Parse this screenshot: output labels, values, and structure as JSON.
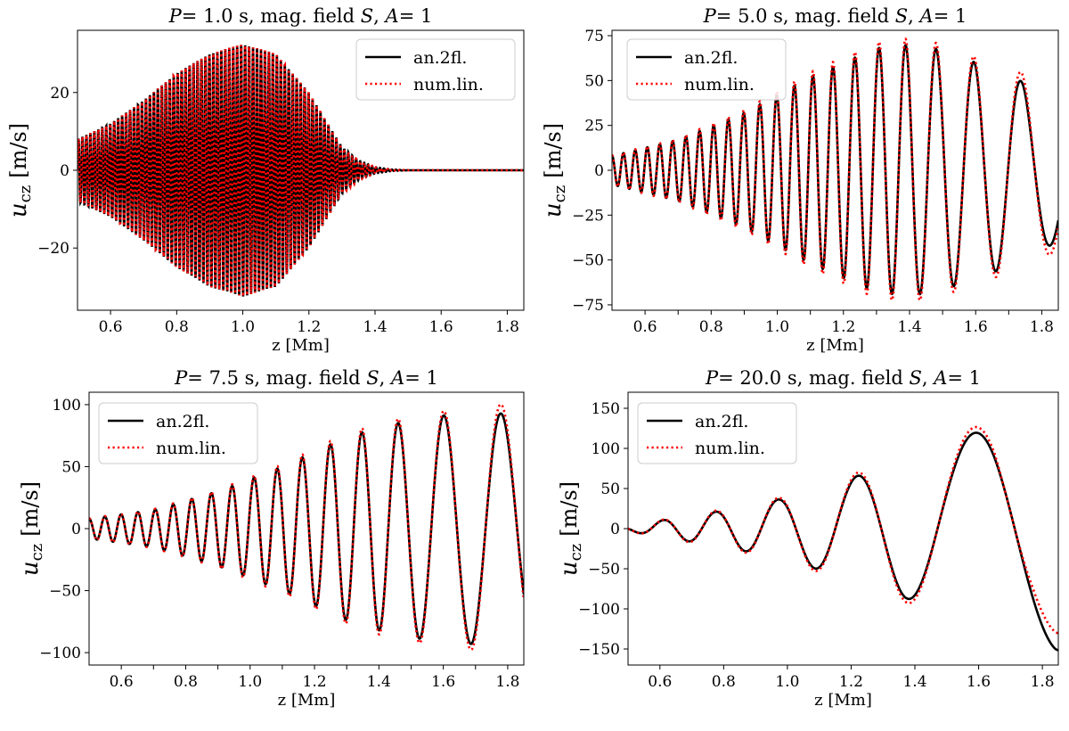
{
  "figure": {
    "panels_layout": "2x2"
  },
  "chart_data": [
    {
      "type": "line",
      "title_parts": {
        "p_var": "P",
        "p_value": "= 1.0 s, mag. field ",
        "s_var": "S",
        "sep": ", ",
        "a_var": "A",
        "a_value": "= 1"
      },
      "xlabel": "z [Mm]",
      "ylabel": {
        "symbol": "u",
        "subscript": "cz",
        "unit": "[m/s]"
      },
      "xlim": [
        0.5,
        1.85
      ],
      "ylim": [
        -36,
        36
      ],
      "xticks": [
        0.6,
        0.8,
        1.0,
        1.2,
        1.4,
        1.6,
        1.8
      ],
      "xtick_labels": [
        "0.6",
        "0.8",
        "1.0",
        "1.2",
        "1.4",
        "1.6",
        "1.8"
      ],
      "yticks": [
        -20,
        0,
        20
      ],
      "ytick_labels": [
        "−20",
        "0",
        "20"
      ],
      "legend": {
        "placement": "top-right",
        "entries": [
          "an.2fl.",
          "num.lin."
        ]
      },
      "series": [
        {
          "name": "an.2fl.",
          "color": "#000000",
          "style": "solid"
        },
        {
          "name": "num.lin.",
          "color": "#ff0000",
          "style": "dotted"
        }
      ],
      "wave": {
        "z_start": 0.5,
        "z_end": 1.85,
        "envelope_z": [
          0.5,
          0.6,
          0.7,
          0.8,
          0.9,
          1.0,
          1.1,
          1.2,
          1.3,
          1.35,
          1.4,
          1.45,
          1.5,
          1.85
        ],
        "envelope_amp": [
          8,
          12,
          18,
          25,
          30,
          32.5,
          30,
          20,
          6,
          2.5,
          0.8,
          0.2,
          0,
          0
        ],
        "wavelength": [
          [
            0.5,
            0.012
          ],
          [
            1.85,
            0.012
          ]
        ],
        "phase": 0,
        "num_lin_amp_ratio": 1.0
      }
    },
    {
      "type": "line",
      "title_parts": {
        "p_var": "P",
        "p_value": "= 5.0 s, mag. field ",
        "s_var": "S",
        "sep": ", ",
        "a_var": "A",
        "a_value": "= 1"
      },
      "xlabel": "z [Mm]",
      "ylabel": {
        "symbol": "u",
        "subscript": "cz",
        "unit": "[m/s]"
      },
      "xlim": [
        0.5,
        1.85
      ],
      "ylim": [
        -78,
        78
      ],
      "xticks": [
        0.6,
        0.7,
        0.8,
        0.9,
        1.0,
        1.1,
        1.2,
        1.3,
        1.4,
        1.5,
        1.6,
        1.7,
        1.8
      ],
      "xtick_labels": [
        "0.6",
        "",
        "0.8",
        "",
        "1.0",
        "",
        "1.2",
        "",
        "1.4",
        "",
        "1.6",
        "",
        "1.8"
      ],
      "yticks": [
        -75,
        -50,
        -25,
        0,
        25,
        50,
        75
      ],
      "ytick_labels": [
        "−75",
        "−50",
        "−25",
        "0",
        "25",
        "50",
        "75"
      ],
      "legend": {
        "placement": "top-left",
        "entries": [
          "an.2fl.",
          "num.lin."
        ]
      },
      "series": [
        {
          "name": "an.2fl.",
          "color": "#000000",
          "style": "solid"
        },
        {
          "name": "num.lin.",
          "color": "#ff0000",
          "style": "dotted"
        }
      ],
      "wave": {
        "z_start": 0.5,
        "z_end": 1.85,
        "envelope_z": [
          0.5,
          0.7,
          0.9,
          1.1,
          1.3,
          1.4,
          1.5,
          1.6,
          1.7,
          1.76,
          1.85
        ],
        "envelope_amp": [
          8,
          17,
          32,
          52,
          68,
          70,
          67,
          60,
          54,
          47,
          40
        ],
        "wavelength": [
          [
            0.5,
            0.034
          ],
          [
            0.8,
            0.043
          ],
          [
            1.1,
            0.057
          ],
          [
            1.4,
            0.085
          ],
          [
            1.7,
            0.15
          ],
          [
            1.85,
            0.2
          ]
        ],
        "phase": 1.57,
        "num_lin_amp_ratio": 1.05,
        "num_lin_tail_ratio": 1.12
      }
    },
    {
      "type": "line",
      "title_parts": {
        "p_var": "P",
        "p_value": "= 7.5 s, mag. field ",
        "s_var": "S",
        "sep": ", ",
        "a_var": "A",
        "a_value": "= 1"
      },
      "xlabel": "z [Mm]",
      "ylabel": {
        "symbol": "u",
        "subscript": "cz",
        "unit": "[m/s]"
      },
      "xlim": [
        0.5,
        1.85
      ],
      "ylim": [
        -110,
        110
      ],
      "xticks": [
        0.6,
        0.7,
        0.8,
        0.9,
        1.0,
        1.1,
        1.2,
        1.3,
        1.4,
        1.5,
        1.6,
        1.7,
        1.8
      ],
      "xtick_labels": [
        "0.6",
        "",
        "0.8",
        "",
        "1.0",
        "",
        "1.2",
        "",
        "1.4",
        "",
        "1.6",
        "",
        "1.8"
      ],
      "yticks": [
        -100,
        -50,
        0,
        50,
        100
      ],
      "ytick_labels": [
        "−100",
        "−50",
        "0",
        "50",
        "100"
      ],
      "legend": {
        "placement": "top-left",
        "entries": [
          "an.2fl.",
          "num.lin."
        ]
      },
      "series": [
        {
          "name": "an.2fl.",
          "color": "#000000",
          "style": "solid"
        },
        {
          "name": "num.lin.",
          "color": "#ff0000",
          "style": "dotted"
        }
      ],
      "wave": {
        "z_start": 0.5,
        "z_end": 1.85,
        "envelope_z": [
          0.5,
          0.7,
          0.9,
          1.1,
          1.3,
          1.4,
          1.55,
          1.63,
          1.75,
          1.85
        ],
        "envelope_amp": [
          8,
          15,
          30,
          50,
          74,
          82,
          90,
          92,
          94,
          90
        ],
        "wavelength": [
          [
            0.5,
            0.048
          ],
          [
            0.8,
            0.058
          ],
          [
            1.1,
            0.075
          ],
          [
            1.4,
            0.11
          ],
          [
            1.6,
            0.16
          ],
          [
            1.85,
            0.21
          ]
        ],
        "phase": 1.57,
        "num_lin_amp_ratio": 1.04,
        "num_lin_tail_ratio": 1.08
      }
    },
    {
      "type": "line",
      "title_parts": {
        "p_var": "P",
        "p_value": "= 20.0 s, mag. field ",
        "s_var": "S",
        "sep": ", ",
        "a_var": "A",
        "a_value": "= 1"
      },
      "xlabel": "z [Mm]",
      "ylabel": {
        "symbol": "u",
        "subscript": "cz",
        "unit": "[m/s]"
      },
      "xlim": [
        0.5,
        1.85
      ],
      "ylim": [
        -170,
        170
      ],
      "xticks": [
        0.6,
        0.8,
        1.0,
        1.2,
        1.4,
        1.6,
        1.8
      ],
      "xtick_labels": [
        "0.6",
        "0.8",
        "1.0",
        "1.2",
        "1.4",
        "1.6",
        "1.8"
      ],
      "yticks": [
        -150,
        -100,
        -50,
        0,
        50,
        100,
        150
      ],
      "ytick_labels": [
        "−150",
        "−100",
        "−50",
        "0",
        "50",
        "100",
        "150"
      ],
      "legend": {
        "placement": "top-left",
        "entries": [
          "an.2fl.",
          "num.lin."
        ]
      },
      "series": [
        {
          "name": "an.2fl.",
          "color": "#000000",
          "style": "solid"
        },
        {
          "name": "num.lin.",
          "color": "#ff0000",
          "style": "dotted"
        }
      ],
      "wave": {
        "z_start": 0.5,
        "z_end": 1.85,
        "envelope_z": [
          0.5,
          0.63,
          0.79,
          0.98,
          1.2,
          1.34,
          1.52,
          1.65,
          1.84,
          1.85
        ],
        "envelope_amp": [
          3,
          12,
          22,
          37,
          63,
          82,
          108,
          130,
          152,
          152
        ],
        "wavelength": [
          [
            0.5,
            0.14
          ],
          [
            0.7,
            0.165
          ],
          [
            0.9,
            0.2
          ],
          [
            1.1,
            0.25
          ],
          [
            1.35,
            0.33
          ],
          [
            1.6,
            0.5
          ],
          [
            1.85,
            0.6
          ]
        ],
        "phase": 3.14,
        "num_lin_amp_ratio": 1.06,
        "num_lin_tail_ratio": 0.86
      }
    }
  ]
}
